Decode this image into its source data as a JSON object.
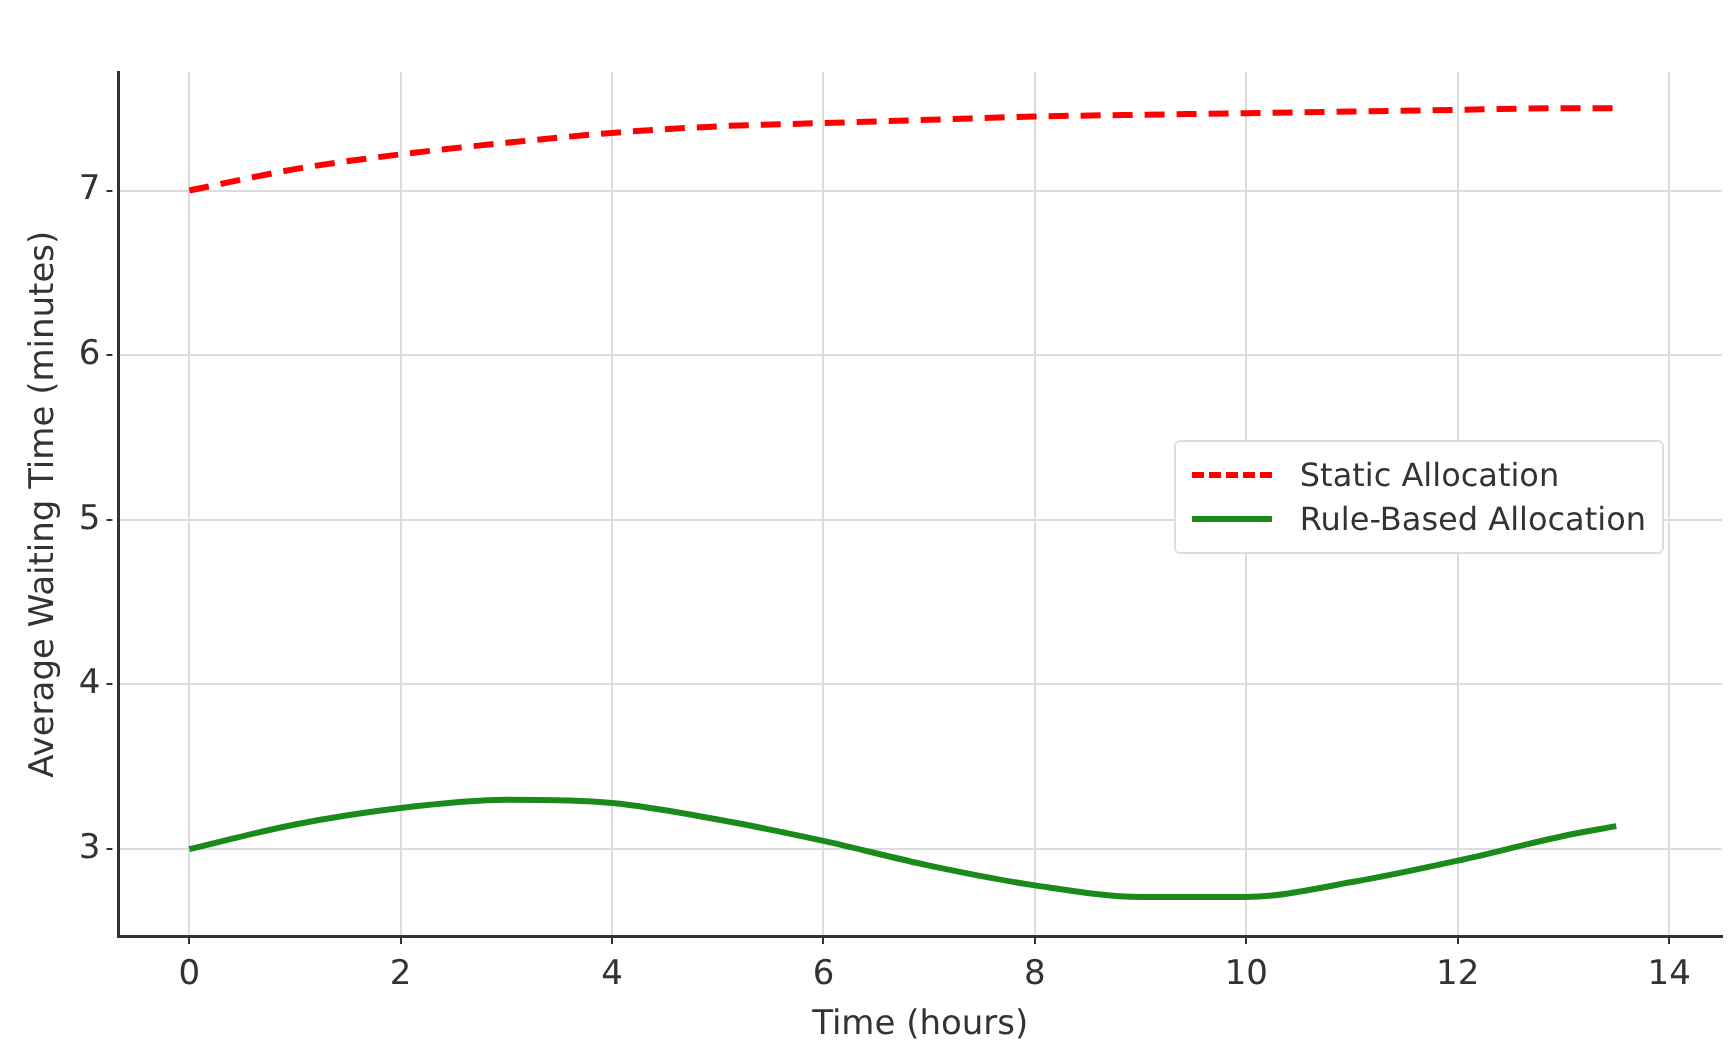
{
  "chart_data": {
    "type": "line",
    "xlabel": "Time (hours)",
    "ylabel": "Average Waiting Time (minutes)",
    "x": [
      0,
      1,
      2,
      3,
      4,
      5,
      6,
      7,
      8,
      9,
      10,
      11,
      12,
      13,
      13.5
    ],
    "series": [
      {
        "name": "Static Allocation",
        "color": "#ff0000",
        "line_style": "dashed",
        "values": [
          7.0,
          7.13,
          7.22,
          7.29,
          7.35,
          7.39,
          7.41,
          7.43,
          7.45,
          7.46,
          7.47,
          7.48,
          7.49,
          7.5,
          7.5
        ]
      },
      {
        "name": "Rule-Based Allocation",
        "color": "#1a8a1a",
        "line_style": "solid",
        "values": [
          3.0,
          3.15,
          3.25,
          3.3,
          3.28,
          3.18,
          3.05,
          2.9,
          2.78,
          2.71,
          2.71,
          2.8,
          2.93,
          3.08,
          3.14
        ]
      }
    ],
    "xlim": [
      -0.67,
      14.5
    ],
    "xticks": [
      0,
      2,
      4,
      6,
      8,
      10,
      12,
      14
    ],
    "ylim": [
      2.47,
      7.72
    ],
    "yticks": [
      3,
      4,
      5,
      6,
      7
    ],
    "grid": true,
    "legend": "right",
    "marker": "none"
  }
}
